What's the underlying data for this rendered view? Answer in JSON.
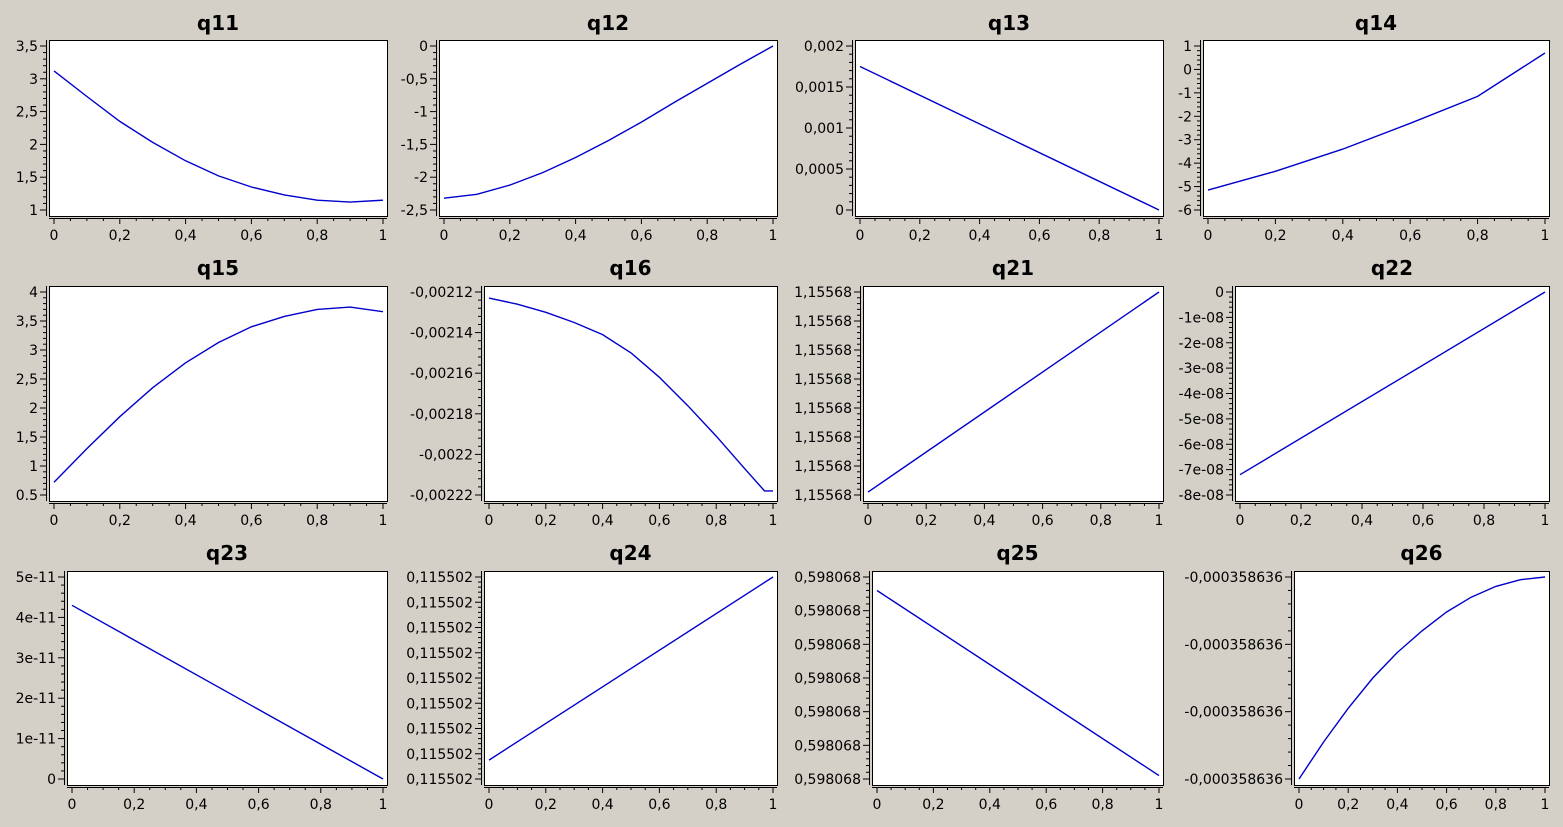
{
  "colors": {
    "background": "#d4d0c8",
    "plot_background": "#ffffff",
    "line": "#0000cc",
    "axis": "#000000"
  },
  "chart_data": [
    {
      "type": "line",
      "title": "q11",
      "xlim": [
        0,
        1
      ],
      "ylim": [
        1,
        3.5
      ],
      "x_ticks": [
        "0",
        "0,2",
        "0,4",
        "0,6",
        "0,8",
        "1"
      ],
      "y_ticks": [
        "1",
        "1,5",
        "2",
        "2,5",
        "3",
        "3,5"
      ],
      "x": [
        0,
        0.1,
        0.2,
        0.3,
        0.4,
        0.5,
        0.6,
        0.7,
        0.8,
        0.9,
        1
      ],
      "y": [
        3.12,
        2.73,
        2.35,
        2.03,
        1.75,
        1.52,
        1.35,
        1.23,
        1.15,
        1.12,
        1.15
      ]
    },
    {
      "type": "line",
      "title": "q12",
      "xlim": [
        0,
        1
      ],
      "ylim": [
        -2.5,
        0
      ],
      "x_ticks": [
        "0",
        "0,2",
        "0,4",
        "0,6",
        "0,8",
        "1"
      ],
      "y_ticks": [
        "-2,5",
        "-2",
        "-1,5",
        "-1",
        "-0,5",
        "0"
      ],
      "x": [
        0,
        0.1,
        0.2,
        0.3,
        0.4,
        0.5,
        0.6,
        0.7,
        0.8,
        0.9,
        1
      ],
      "y": [
        -2.32,
        -2.26,
        -2.12,
        -1.93,
        -1.7,
        -1.44,
        -1.16,
        -0.86,
        -0.57,
        -0.28,
        0
      ]
    },
    {
      "type": "line",
      "title": "q13",
      "xlim": [
        0,
        1
      ],
      "ylim": [
        0,
        0.002
      ],
      "x_ticks": [
        "0",
        "0,2",
        "0,4",
        "0,6",
        "0,8",
        "1"
      ],
      "y_ticks": [
        "0",
        "0,0005",
        "0,001",
        "0,0015",
        "0,002"
      ],
      "x": [
        0,
        0.5,
        1
      ],
      "y": [
        0.00175,
        0.000875,
        0
      ]
    },
    {
      "type": "line",
      "title": "q14",
      "xlim": [
        0,
        1
      ],
      "ylim": [
        -6,
        1
      ],
      "x_ticks": [
        "0",
        "0,2",
        "0,4",
        "0,6",
        "0,8",
        "1"
      ],
      "y_ticks": [
        "-6",
        "-5",
        "-4",
        "-3",
        "-2",
        "-1",
        "0",
        "1"
      ],
      "x": [
        0,
        0.2,
        0.4,
        0.6,
        0.8,
        1
      ],
      "y": [
        -5.15,
        -4.35,
        -3.4,
        -2.3,
        -1.15,
        0.7
      ]
    },
    {
      "type": "line",
      "title": "q15",
      "xlim": [
        0,
        1
      ],
      "ylim": [
        0.5,
        4
      ],
      "x_ticks": [
        "0",
        "0,2",
        "0,4",
        "0,6",
        "0,8",
        "1"
      ],
      "y_ticks": [
        "0.5",
        "1",
        "1,5",
        "2",
        "2,5",
        "3",
        "3,5",
        "4"
      ],
      "x": [
        0,
        0.1,
        0.2,
        0.3,
        0.4,
        0.5,
        0.6,
        0.7,
        0.8,
        0.9,
        1
      ],
      "y": [
        0.72,
        1.3,
        1.85,
        2.35,
        2.78,
        3.13,
        3.4,
        3.58,
        3.7,
        3.74,
        3.66
      ]
    },
    {
      "type": "line",
      "title": "q16",
      "xlim": [
        0,
        1
      ],
      "ylim": [
        -0.00222,
        -0.00212
      ],
      "x_ticks": [
        "0",
        "0,2",
        "0,4",
        "0,6",
        "0,8",
        "1"
      ],
      "y_ticks": [
        "-0,00222",
        "-0,0022",
        "-0,00218",
        "-0,00216",
        "-0,00214",
        "-0,00212"
      ],
      "x": [
        0,
        0.1,
        0.2,
        0.3,
        0.4,
        0.5,
        0.6,
        0.7,
        0.8,
        0.9,
        0.97,
        1
      ],
      "y": [
        -0.002123,
        -0.002126,
        -0.00213,
        -0.002135,
        -0.002141,
        -0.00215,
        -0.002162,
        -0.002176,
        -0.002191,
        -0.002207,
        -0.002218,
        -0.002218
      ]
    },
    {
      "type": "line",
      "title": "q21",
      "xlim": [
        0,
        1
      ],
      "ylim": [
        0,
        7
      ],
      "x_ticks": [
        "0",
        "0,2",
        "0,4",
        "0,6",
        "0,8",
        "1"
      ],
      "y_ticks": [
        "1,15568",
        "1,15568",
        "1,15568",
        "1,15568",
        "1,15568",
        "1,15568",
        "1,15568",
        "1,15568"
      ],
      "x": [
        0,
        1
      ],
      "y": [
        0.1,
        7
      ]
    },
    {
      "type": "line",
      "title": "q22",
      "xlim": [
        0,
        1
      ],
      "ylim": [
        -8e-08,
        0
      ],
      "x_ticks": [
        "0",
        "0,2",
        "0,4",
        "0,6",
        "0,8",
        "1"
      ],
      "y_ticks": [
        "-8e-08",
        "-7e-08",
        "-6e-08",
        "-5e-08",
        "-4e-08",
        "-3e-08",
        "-2e-08",
        "-1e-08",
        "0"
      ],
      "x": [
        0,
        1
      ],
      "y": [
        -7.2e-08,
        0
      ]
    },
    {
      "type": "line",
      "title": "q23",
      "xlim": [
        0,
        1
      ],
      "ylim": [
        0,
        5e-11
      ],
      "x_ticks": [
        "0",
        "0,2",
        "0,4",
        "0,6",
        "0,8",
        "1"
      ],
      "y_ticks": [
        "0",
        "1e-11",
        "2e-11",
        "3e-11",
        "4e-11",
        "5e-11"
      ],
      "x": [
        0,
        1
      ],
      "y": [
        4.3e-11,
        0
      ]
    },
    {
      "type": "line",
      "title": "q24",
      "xlim": [
        0,
        1
      ],
      "ylim": [
        0,
        8
      ],
      "x_ticks": [
        "0",
        "0,2",
        "0,4",
        "0,6",
        "0,8",
        "1"
      ],
      "y_ticks": [
        "0,115502",
        "0,115502",
        "0,115502",
        "0,115502",
        "0,115502",
        "0,115502",
        "0,115502",
        "0,115502",
        "0,115502"
      ],
      "x": [
        0,
        1
      ],
      "y": [
        0.75,
        8
      ]
    },
    {
      "type": "line",
      "title": "q25",
      "xlim": [
        0,
        1
      ],
      "ylim": [
        0,
        6
      ],
      "x_ticks": [
        "0",
        "0,2",
        "0,4",
        "0,6",
        "0,8",
        "1"
      ],
      "y_ticks": [
        "0,598068",
        "0,598068",
        "0,598068",
        "0,598068",
        "0,598068",
        "0,598068",
        "0,598068"
      ],
      "x": [
        0,
        1
      ],
      "y": [
        5.6,
        0.1
      ]
    },
    {
      "type": "line",
      "title": "q26",
      "xlim": [
        0,
        1
      ],
      "ylim": [
        0,
        3
      ],
      "x_ticks": [
        "0",
        "0,2",
        "0,4",
        "0,6",
        "0,8",
        "1"
      ],
      "y_ticks": [
        "-0,000358636",
        "-0,000358636",
        "-0,000358636",
        "-0,000358636"
      ],
      "x": [
        0,
        0.1,
        0.2,
        0.3,
        0.4,
        0.5,
        0.6,
        0.7,
        0.8,
        0.9,
        1
      ],
      "y": [
        0,
        0.55,
        1.05,
        1.5,
        1.88,
        2.2,
        2.48,
        2.7,
        2.86,
        2.96,
        3
      ]
    }
  ]
}
